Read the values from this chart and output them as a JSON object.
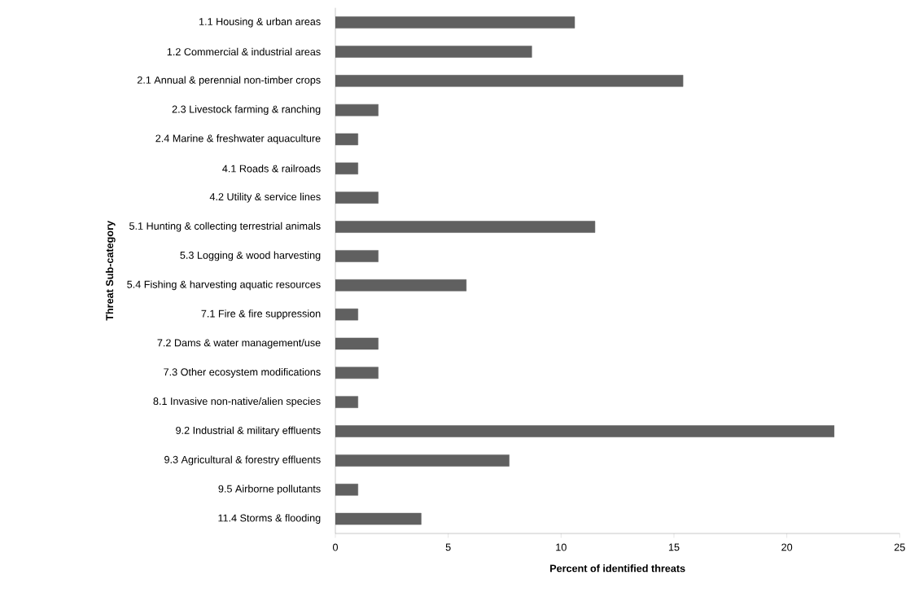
{
  "chart_data": {
    "type": "bar",
    "orientation": "horizontal",
    "xlabel": "Percent of identified threats",
    "ylabel": "Threat Sub-category",
    "categories": [
      "1.1 Housing & urban areas",
      "1.2 Commercial & industrial areas",
      "2.1 Annual & perennial non-timber crops",
      "2.3 Livestock farming & ranching",
      "2.4 Marine & freshwater aquaculture",
      "4.1 Roads & railroads",
      "4.2 Utility & service lines",
      "5.1 Hunting & collecting terrestrial animals",
      "5.3 Logging & wood harvesting",
      "5.4 Fishing & harvesting aquatic resources",
      "7.1 Fire & fire suppression",
      "7.2 Dams & water management/use",
      "7.3 Other ecosystem modifications",
      "8.1 Invasive non-native/alien species",
      "9.2 Industrial & military effluents",
      "9.3 Agricultural & forestry effluents",
      "9.5 Airborne pollutants",
      "11.4 Storms & flooding"
    ],
    "values": [
      10.6,
      8.7,
      15.4,
      1.9,
      1.0,
      1.0,
      1.9,
      11.5,
      1.9,
      5.8,
      1.0,
      1.9,
      1.9,
      1.0,
      22.1,
      7.7,
      1.0,
      3.8
    ],
    "color": "#606060",
    "xlim": [
      0,
      25
    ],
    "xticks": [
      0,
      5,
      10,
      15,
      20,
      25
    ],
    "grid": false
  }
}
